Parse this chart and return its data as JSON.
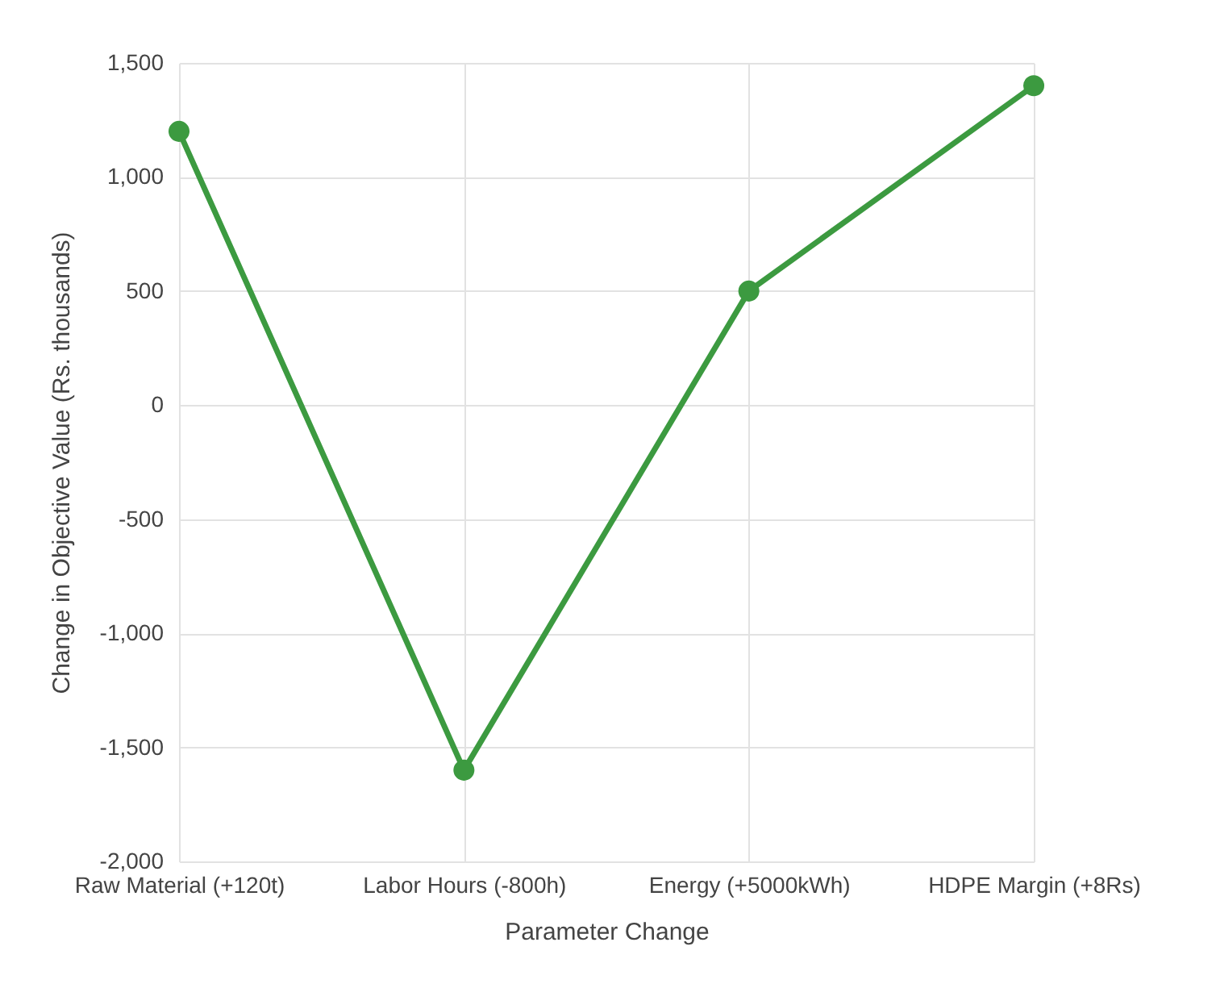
{
  "chart_data": {
    "type": "line",
    "xlabel": "Parameter Change",
    "ylabel": "Change in Objective Value (Rs. thousands)",
    "categories": [
      "Raw Material (+120t)",
      "Labor Hours (-800h)",
      "Energy (+5000kWh)",
      "HDPE Margin (+8Rs)"
    ],
    "series": [
      {
        "color": "#3c9a40",
        "values": [
          1200,
          -1600,
          500,
          1400
        ]
      }
    ],
    "ylim": [
      -2000,
      1500
    ],
    "yticks": [
      {
        "value": -2000,
        "label": "-2,000"
      },
      {
        "value": -1500,
        "label": "-1,500"
      },
      {
        "value": -1000,
        "label": "-1,000"
      },
      {
        "value": -500,
        "label": "-500"
      },
      0,
      500,
      {
        "value": 1000,
        "label": "1,000"
      },
      {
        "value": 1500,
        "label": "1,500"
      }
    ],
    "grid": true,
    "marker": "circle",
    "line_style": "solid"
  }
}
